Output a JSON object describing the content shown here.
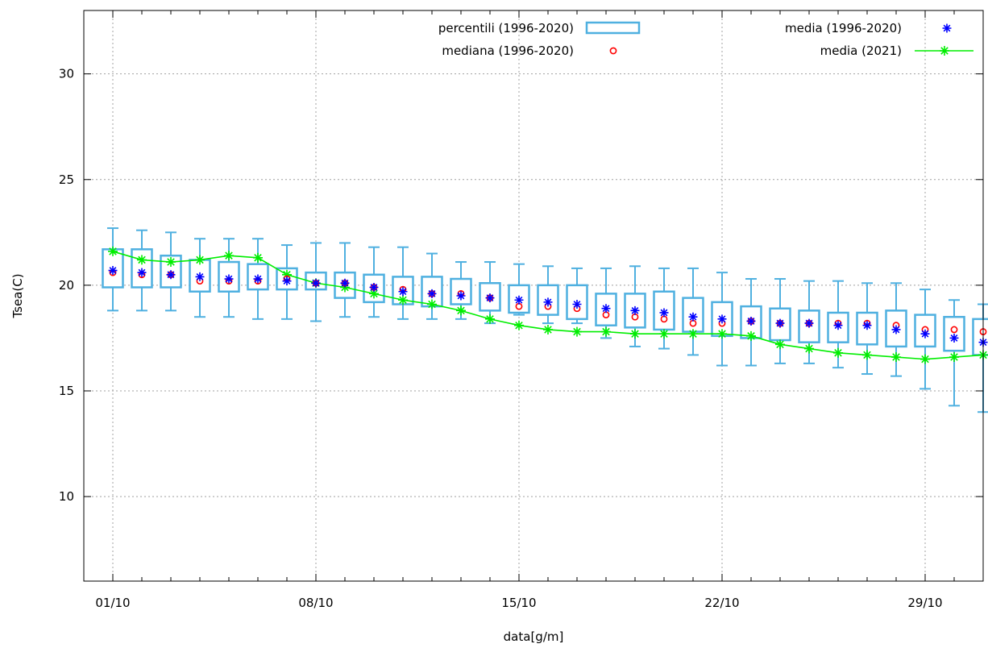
{
  "chart_data": {
    "type": "box",
    "title": "",
    "xlabel": "data[g/m]",
    "ylabel": "Tsea(C)",
    "xlim": [
      0,
      31
    ],
    "ylim": [
      6,
      33
    ],
    "x_ticks": [
      {
        "day": 1,
        "label": "01/10"
      },
      {
        "day": 8,
        "label": "08/10"
      },
      {
        "day": 15,
        "label": "15/10"
      },
      {
        "day": 22,
        "label": "22/10"
      },
      {
        "day": 29,
        "label": "29/10"
      }
    ],
    "y_ticks": [
      10,
      15,
      20,
      25,
      30
    ],
    "grid": true,
    "legend_position": "top",
    "colors": {
      "percentili": "#4fb0e0",
      "media_storica": "#0000ff",
      "mediana": "#ff0000",
      "media_2021": "#00ee00"
    },
    "series": [
      {
        "name": "percentili (1996-2020)",
        "kind": "box"
      },
      {
        "name": "mediana (1996-2020)",
        "kind": "points"
      },
      {
        "name": "media (1996-2020)",
        "kind": "points"
      },
      {
        "name": "media (2021)",
        "kind": "line"
      }
    ],
    "days": [
      1,
      2,
      3,
      4,
      5,
      6,
      7,
      8,
      9,
      10,
      11,
      12,
      13,
      14,
      15,
      16,
      17,
      18,
      19,
      20,
      21,
      22,
      23,
      24,
      25,
      26,
      27,
      28,
      29,
      30,
      31
    ],
    "box_whisker_low": [
      18.8,
      18.8,
      18.8,
      18.5,
      18.5,
      18.4,
      18.4,
      18.3,
      18.5,
      18.5,
      18.4,
      18.4,
      18.4,
      18.2,
      18.6,
      18.2,
      18.2,
      17.5,
      17.1,
      17.0,
      16.7,
      16.2,
      16.2,
      16.3,
      16.3,
      16.1,
      15.8,
      15.7,
      15.1,
      14.3,
      14.0
    ],
    "box_q_low": [
      19.9,
      19.9,
      19.9,
      19.7,
      19.7,
      19.8,
      19.8,
      19.8,
      19.4,
      19.2,
      19.1,
      19.0,
      19.1,
      18.8,
      18.7,
      18.6,
      18.4,
      18.1,
      18.0,
      17.9,
      17.8,
      17.6,
      17.5,
      17.4,
      17.3,
      17.3,
      17.2,
      17.1,
      17.1,
      16.9,
      16.7
    ],
    "box_q_high": [
      21.7,
      21.7,
      21.4,
      21.2,
      21.1,
      21.0,
      20.8,
      20.6,
      20.6,
      20.5,
      20.4,
      20.4,
      20.3,
      20.1,
      20.0,
      20.0,
      20.0,
      19.6,
      19.6,
      19.7,
      19.4,
      19.2,
      19.0,
      18.9,
      18.8,
      18.7,
      18.7,
      18.8,
      18.6,
      18.5,
      18.4
    ],
    "box_whisker_high": [
      22.7,
      22.6,
      22.5,
      22.2,
      22.2,
      22.2,
      21.9,
      22.0,
      22.0,
      21.8,
      21.8,
      21.5,
      21.1,
      21.1,
      21.0,
      20.9,
      20.8,
      20.8,
      20.9,
      20.8,
      20.8,
      20.6,
      20.3,
      20.3,
      20.2,
      20.2,
      20.1,
      20.1,
      19.8,
      19.3,
      19.1
    ],
    "mediana_1996_2020": [
      20.6,
      20.5,
      20.5,
      20.2,
      20.2,
      20.2,
      20.3,
      20.1,
      20.1,
      19.9,
      19.8,
      19.6,
      19.6,
      19.4,
      19.0,
      19.0,
      18.9,
      18.6,
      18.5,
      18.4,
      18.2,
      18.2,
      18.3,
      18.2,
      18.2,
      18.2,
      18.2,
      18.1,
      17.9,
      17.9,
      17.8
    ],
    "media_1996_2020": [
      20.7,
      20.6,
      20.5,
      20.4,
      20.3,
      20.3,
      20.2,
      20.1,
      20.1,
      19.9,
      19.7,
      19.6,
      19.5,
      19.4,
      19.3,
      19.2,
      19.1,
      18.9,
      18.8,
      18.7,
      18.5,
      18.4,
      18.3,
      18.2,
      18.2,
      18.1,
      18.1,
      17.9,
      17.7,
      17.5,
      17.3
    ],
    "media_2021": [
      21.6,
      21.2,
      21.1,
      21.2,
      21.4,
      21.3,
      20.5,
      20.1,
      19.9,
      19.6,
      19.3,
      19.1,
      18.8,
      18.4,
      18.1,
      17.9,
      17.8,
      17.8,
      17.7,
      17.7,
      17.7,
      17.7,
      17.6,
      17.2,
      17.0,
      16.8,
      16.7,
      16.6,
      16.5,
      16.6,
      16.7
    ]
  }
}
